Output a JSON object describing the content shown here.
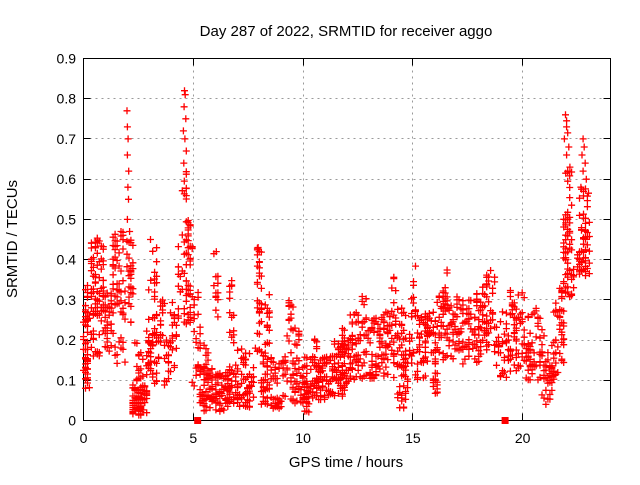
{
  "figure": {
    "title": "Day 287 of 2022, SRMTID for receiver aggo",
    "xlabel": "GPS time / hours",
    "ylabel": "SRMTID / TECUs"
  },
  "colors": {
    "marker": "#ff0000",
    "grid": "#9a9a9a",
    "axis": "#000000",
    "background": "#ffffff"
  },
  "chart_data": {
    "type": "scatter",
    "title": "Day 287 of 2022, SRMTID for receiver aggo",
    "xlabel": "GPS time / hours",
    "ylabel": "SRMTID / TECUs",
    "xlim": [
      0,
      24
    ],
    "ylim": [
      0,
      0.9
    ],
    "xticks": [
      0,
      5,
      10,
      15,
      20
    ],
    "xtick_labels": [
      "0",
      "5",
      "10",
      "15",
      "20"
    ],
    "yticks": [
      0,
      0.1,
      0.2,
      0.3,
      0.4,
      0.5,
      0.6,
      0.7,
      0.8,
      0.9
    ],
    "ytick_labels": [
      "0",
      "0.1",
      "0.2",
      "0.3",
      "0.4",
      "0.5",
      "0.6",
      "0.7",
      "0.8",
      "0.9"
    ],
    "grid": "dashed-gray",
    "legend": "none",
    "series": [
      {
        "name": "SRMTID",
        "marker": "plus",
        "color": "#ff0000",
        "bands_format": [
          "x_start_hours",
          "x_end_hours",
          "y_min_TECUs",
          "y_max_TECUs",
          "n_points"
        ],
        "bands": [
          [
            0.02,
            0.28,
            0.08,
            0.26,
            40
          ],
          [
            0.05,
            0.3,
            0.26,
            0.34,
            12
          ],
          [
            0.3,
            0.95,
            0.26,
            0.46,
            65
          ],
          [
            0.35,
            0.9,
            0.16,
            0.26,
            18
          ],
          [
            0.95,
            1.3,
            0.17,
            0.33,
            28
          ],
          [
            1.3,
            1.9,
            0.29,
            0.48,
            40
          ],
          [
            1.35,
            1.9,
            0.13,
            0.29,
            18
          ],
          [
            1.95,
            2.3,
            0.2,
            0.46,
            28
          ],
          [
            2.2,
            2.9,
            0.01,
            0.09,
            85
          ],
          [
            2.35,
            2.7,
            0.09,
            0.2,
            15
          ],
          [
            2.9,
            3.4,
            0.09,
            0.23,
            45
          ],
          [
            2.95,
            3.4,
            0.25,
            0.43,
            18
          ],
          [
            3.4,
            3.65,
            0.18,
            0.31,
            14
          ],
          [
            3.65,
            3.95,
            0.07,
            0.2,
            18
          ],
          [
            3.95,
            4.3,
            0.12,
            0.3,
            20
          ],
          [
            4.3,
            4.95,
            0.24,
            0.5,
            60
          ],
          [
            4.45,
            4.75,
            0.5,
            0.62,
            9
          ],
          [
            4.95,
            5.35,
            0.08,
            0.32,
            25
          ],
          [
            5.3,
            5.95,
            0.02,
            0.13,
            55
          ],
          [
            5.5,
            5.7,
            0.13,
            0.19,
            8
          ],
          [
            5.95,
            6.15,
            0.25,
            0.42,
            12
          ],
          [
            6.0,
            6.6,
            0.02,
            0.12,
            55
          ],
          [
            6.6,
            6.85,
            0.18,
            0.35,
            14
          ],
          [
            6.6,
            7.8,
            0.03,
            0.14,
            75
          ],
          [
            7.0,
            7.6,
            0.14,
            0.2,
            10
          ],
          [
            7.85,
            8.15,
            0.13,
            0.43,
            30
          ],
          [
            8.1,
            8.5,
            0.04,
            0.2,
            35
          ],
          [
            8.28,
            8.5,
            0.22,
            0.33,
            12
          ],
          [
            8.5,
            9.25,
            0.03,
            0.16,
            55
          ],
          [
            9.3,
            9.55,
            0.15,
            0.32,
            15
          ],
          [
            9.4,
            10.2,
            0.04,
            0.16,
            55
          ],
          [
            9.6,
            9.85,
            0.17,
            0.24,
            10
          ],
          [
            10.0,
            10.35,
            0.02,
            0.1,
            25
          ],
          [
            10.3,
            11.3,
            0.05,
            0.16,
            75
          ],
          [
            10.45,
            10.65,
            0.14,
            0.21,
            8
          ],
          [
            11.3,
            12.05,
            0.06,
            0.2,
            65
          ],
          [
            11.75,
            11.95,
            0.15,
            0.24,
            10
          ],
          [
            12.05,
            12.5,
            0.1,
            0.27,
            40
          ],
          [
            12.5,
            13.4,
            0.1,
            0.26,
            60
          ],
          [
            12.6,
            12.9,
            0.24,
            0.31,
            8
          ],
          [
            13.4,
            14.1,
            0.1,
            0.27,
            50
          ],
          [
            14.0,
            14.2,
            0.26,
            0.36,
            8
          ],
          [
            14.25,
            14.75,
            0.02,
            0.12,
            20
          ],
          [
            14.1,
            15.0,
            0.12,
            0.28,
            60
          ],
          [
            14.95,
            15.15,
            0.25,
            0.4,
            10
          ],
          [
            15.1,
            16.1,
            0.1,
            0.27,
            70
          ],
          [
            15.9,
            16.15,
            0.06,
            0.12,
            12
          ],
          [
            16.1,
            17.1,
            0.15,
            0.31,
            70
          ],
          [
            16.35,
            16.55,
            0.3,
            0.38,
            7
          ],
          [
            17.1,
            18.15,
            0.14,
            0.3,
            75
          ],
          [
            17.8,
            18.0,
            0.28,
            0.34,
            6
          ],
          [
            18.15,
            18.75,
            0.17,
            0.38,
            45
          ],
          [
            18.75,
            19.35,
            0.1,
            0.27,
            32
          ],
          [
            19.35,
            20.1,
            0.12,
            0.33,
            55
          ],
          [
            20.1,
            21.0,
            0.1,
            0.28,
            60
          ],
          [
            20.9,
            21.45,
            0.04,
            0.22,
            40
          ],
          [
            21.45,
            21.9,
            0.1,
            0.33,
            40
          ],
          [
            21.85,
            22.35,
            0.3,
            0.52,
            55
          ],
          [
            21.9,
            22.3,
            0.52,
            0.62,
            9
          ],
          [
            22.5,
            23.05,
            0.36,
            0.52,
            50
          ],
          [
            22.6,
            23.0,
            0.52,
            0.6,
            8
          ]
        ],
        "points": [
          [
            1.98,
            0.77
          ],
          [
            2.0,
            0.73
          ],
          [
            2.03,
            0.7
          ],
          [
            2.0,
            0.66
          ],
          [
            2.06,
            0.62
          ],
          [
            2.02,
            0.58
          ],
          [
            2.05,
            0.55
          ],
          [
            2.0,
            0.5
          ],
          [
            2.1,
            0.47
          ],
          [
            4.6,
            0.82
          ],
          [
            4.63,
            0.81
          ],
          [
            4.58,
            0.78
          ],
          [
            4.66,
            0.75
          ],
          [
            4.55,
            0.72
          ],
          [
            4.62,
            0.7
          ],
          [
            4.68,
            0.67
          ],
          [
            4.57,
            0.64
          ],
          [
            3.05,
            0.45
          ],
          [
            6.05,
            0.42
          ],
          [
            7.95,
            0.43
          ],
          [
            8.0,
            0.42
          ],
          [
            21.95,
            0.76
          ],
          [
            22.0,
            0.745
          ],
          [
            22.0,
            0.73
          ],
          [
            22.05,
            0.715
          ],
          [
            21.9,
            0.7
          ],
          [
            22.1,
            0.68
          ],
          [
            22.0,
            0.66
          ],
          [
            22.15,
            0.63
          ],
          [
            22.75,
            0.7
          ],
          [
            22.8,
            0.68
          ],
          [
            22.7,
            0.66
          ],
          [
            22.85,
            0.64
          ],
          [
            22.75,
            0.62
          ],
          [
            22.9,
            0.6
          ],
          [
            22.65,
            0.58
          ],
          [
            23.0,
            0.565
          ]
        ]
      },
      {
        "name": "flag-markers",
        "marker": "filled-square",
        "color": "#ff0000",
        "points": [
          [
            5.2,
            0
          ],
          [
            19.2,
            0
          ]
        ]
      }
    ]
  }
}
